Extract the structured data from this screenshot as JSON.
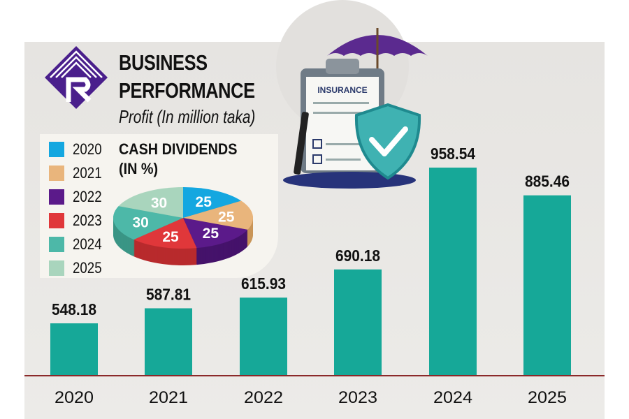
{
  "header": {
    "title_line1": "BUSINESS",
    "title_line2": "PERFORMANCE",
    "subtitle": "Profit (In million taka)"
  },
  "illustration": {
    "clipboard_label": "INSURANCE"
  },
  "colors": {
    "bar": "#16a898",
    "baseline": "#8b2a2a",
    "logo": "#4a1f8c"
  },
  "chart_data": [
    {
      "type": "bar",
      "title": "Profit (In million taka)",
      "categories": [
        "2020",
        "2021",
        "2022",
        "2023",
        "2024",
        "2025"
      ],
      "values": [
        548.18,
        587.81,
        615.93,
        690.18,
        958.54,
        885.46
      ],
      "ylim": [
        412,
        1000
      ],
      "xlabel": "",
      "ylabel": "",
      "grid": false
    },
    {
      "type": "pie",
      "title": "CASH DIVIDENDS (IN %)",
      "title_line1": "CASH DIVIDENDS",
      "title_line2": "(IN %)",
      "categories": [
        "2020",
        "2021",
        "2022",
        "2023",
        "2024",
        "2025"
      ],
      "values": [
        25,
        25,
        25,
        25,
        30,
        30
      ],
      "colors": [
        "#14a7e0",
        "#e9b57c",
        "#5b1a8a",
        "#e0373a",
        "#4db8a8",
        "#a9d5bd"
      ],
      "side_colors": [
        "#0f86b5",
        "#c99558",
        "#45126b",
        "#b82a2d",
        "#3a9585",
        "#8ab59e"
      ],
      "legend": "left"
    }
  ]
}
